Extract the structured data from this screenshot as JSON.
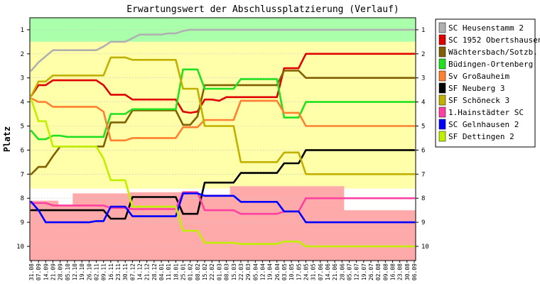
{
  "chart_data": {
    "type": "line",
    "title": "Erwartungswert der Abschlussplatzierung (Verlauf)",
    "xlabel": "",
    "ylabel": "Platz",
    "yaxis": {
      "ticks": [
        1,
        2,
        3,
        4,
        5,
        6,
        7,
        8,
        9,
        10
      ],
      "inverted": true,
      "right_ticks": true
    },
    "x": [
      "31.08",
      "07.09",
      "14.09",
      "21.09",
      "28.09",
      "05.10",
      "12.10",
      "19.10",
      "26.10",
      "02.11",
      "09.11",
      "16.11",
      "23.11",
      "30.11",
      "07.12",
      "14.12",
      "21.12",
      "28.12",
      "04.01",
      "11.01",
      "18.01",
      "25.01",
      "01.02",
      "08.02",
      "15.02",
      "22.02",
      "01.03",
      "08.03",
      "15.03",
      "22.03",
      "29.03",
      "05.04",
      "12.04",
      "19.04",
      "26.04",
      "03.05",
      "10.05",
      "17.05",
      "24.05",
      "31.05",
      "07.06",
      "14.06",
      "21.06",
      "28.06",
      "05.07",
      "12.07",
      "19.07",
      "26.07",
      "02.08",
      "09.08",
      "16.08",
      "23.08",
      "30.08",
      "06.09"
    ],
    "legend": {
      "position": "right"
    },
    "bands": [
      {
        "name": "aufstieg",
        "color": "#aaffaa"
      },
      {
        "name": "mittelfeld",
        "color": "#ffffaa"
      },
      {
        "name": "abstieg",
        "color": "#ffaaaa"
      }
    ],
    "series": [
      {
        "name": "SC Heusenstamm 2",
        "color": "#b0b0b0",
        "values": [
          2.7,
          2.35,
          2.1,
          1.85,
          1.85,
          1.85,
          1.85,
          1.85,
          1.85,
          1.85,
          1.7,
          1.5,
          1.5,
          1.5,
          1.35,
          1.2,
          1.2,
          1.2,
          1.2,
          1.15,
          1.15,
          1.05,
          1.0,
          1.0,
          1.0,
          1.0,
          1.0,
          1.0,
          1.0,
          1.0,
          1.0,
          1.0,
          1.0,
          1.0,
          1.0,
          1.0,
          1.0,
          1.0,
          1.0,
          1.0,
          1.0,
          1.0,
          1.0,
          1.0,
          1.0,
          1.0,
          1.0,
          1.0,
          1.0,
          1.0,
          1.0,
          1.0,
          1.0,
          1.0
        ]
      },
      {
        "name": "SC 1952 Obertshausen",
        "color": "#e00000",
        "values": [
          3.75,
          3.3,
          3.3,
          3.1,
          3.1,
          3.1,
          3.1,
          3.1,
          3.1,
          3.1,
          3.3,
          3.7,
          3.7,
          3.7,
          3.9,
          3.9,
          3.9,
          3.9,
          3.9,
          3.9,
          3.9,
          4.4,
          4.45,
          4.4,
          3.9,
          3.9,
          3.95,
          3.8,
          3.8,
          3.8,
          3.8,
          3.8,
          3.8,
          3.8,
          3.8,
          2.6,
          2.6,
          2.6,
          2.0,
          2.0,
          2.0,
          2.0,
          2.0,
          2.0,
          2.0,
          2.0,
          2.0,
          2.0,
          2.0,
          2.0,
          2.0,
          2.0,
          2.0,
          2.0
        ]
      },
      {
        "name": "Wächtersbach/Sotzb.",
        "color": "#806000",
        "values": [
          7.0,
          6.7,
          6.7,
          6.25,
          5.85,
          5.85,
          5.85,
          5.85,
          5.85,
          5.85,
          5.85,
          4.85,
          4.85,
          4.85,
          4.35,
          4.35,
          4.35,
          4.35,
          4.35,
          4.35,
          4.35,
          4.95,
          4.95,
          4.6,
          3.3,
          3.3,
          3.3,
          3.3,
          3.3,
          3.3,
          3.3,
          3.3,
          3.3,
          3.3,
          3.3,
          2.7,
          2.7,
          2.7,
          3.0,
          3.0,
          3.0,
          3.0,
          3.0,
          3.0,
          3.0,
          3.0,
          3.0,
          3.0,
          3.0,
          3.0,
          3.0,
          3.0,
          3.0,
          3.0
        ]
      },
      {
        "name": "Büdingen-Ortenberg",
        "color": "#20e020",
        "values": [
          5.2,
          5.55,
          5.55,
          5.4,
          5.4,
          5.45,
          5.45,
          5.45,
          5.45,
          5.45,
          5.45,
          4.5,
          4.5,
          4.5,
          4.3,
          4.3,
          4.3,
          4.3,
          4.3,
          4.3,
          4.3,
          2.65,
          2.65,
          2.65,
          3.45,
          3.45,
          3.45,
          3.45,
          3.45,
          3.05,
          3.05,
          3.05,
          3.05,
          3.05,
          3.05,
          4.65,
          4.65,
          4.65,
          4.0,
          4.0,
          4.0,
          4.0,
          4.0,
          4.0,
          4.0,
          4.0,
          4.0,
          4.0,
          4.0,
          4.0,
          4.0,
          4.0,
          4.0,
          4.0
        ]
      },
      {
        "name": "Sv Großauheim",
        "color": "#ff8030",
        "values": [
          3.85,
          4.0,
          4.0,
          4.2,
          4.2,
          4.2,
          4.2,
          4.2,
          4.2,
          4.2,
          4.4,
          5.6,
          5.6,
          5.6,
          5.5,
          5.5,
          5.5,
          5.5,
          5.5,
          5.5,
          5.5,
          5.05,
          5.05,
          5.05,
          4.75,
          4.75,
          4.75,
          4.75,
          4.75,
          3.95,
          3.95,
          3.95,
          3.95,
          3.95,
          3.95,
          4.45,
          4.45,
          4.45,
          5.0,
          5.0,
          5.0,
          5.0,
          5.0,
          5.0,
          5.0,
          5.0,
          5.0,
          5.0,
          5.0,
          5.0,
          5.0,
          5.0,
          5.0,
          5.0
        ]
      },
      {
        "name": "SF Neuberg 3",
        "color": "#000000",
        "values": [
          8.5,
          8.5,
          8.5,
          8.5,
          8.5,
          8.5,
          8.5,
          8.5,
          8.5,
          8.5,
          8.5,
          8.85,
          8.85,
          8.85,
          7.95,
          7.95,
          7.95,
          7.95,
          7.95,
          7.95,
          7.95,
          8.65,
          8.65,
          8.65,
          7.35,
          7.35,
          7.35,
          7.35,
          7.35,
          6.95,
          6.95,
          6.95,
          6.95,
          6.95,
          6.95,
          6.55,
          6.55,
          6.55,
          6.0,
          6.0,
          6.0,
          6.0,
          6.0,
          6.0,
          6.0,
          6.0,
          6.0,
          6.0,
          6.0,
          6.0,
          6.0,
          6.0,
          6.0,
          6.0
        ]
      },
      {
        "name": "SF Schöneck 3",
        "color": "#c0b000",
        "values": [
          3.75,
          3.15,
          3.15,
          2.9,
          2.9,
          2.9,
          2.9,
          2.9,
          2.9,
          2.9,
          2.9,
          2.15,
          2.15,
          2.15,
          2.25,
          2.25,
          2.25,
          2.25,
          2.25,
          2.25,
          2.25,
          3.45,
          3.45,
          3.45,
          5.0,
          5.0,
          5.0,
          5.0,
          5.0,
          6.5,
          6.5,
          6.5,
          6.5,
          6.5,
          6.5,
          6.1,
          6.1,
          6.1,
          7.0,
          7.0,
          7.0,
          7.0,
          7.0,
          7.0,
          7.0,
          7.0,
          7.0,
          7.0,
          7.0,
          7.0,
          7.0,
          7.0,
          7.0,
          7.0
        ]
      },
      {
        "name": "1.Hainstädter SC",
        "color": "#ff40a0",
        "values": [
          8.2,
          8.2,
          8.2,
          8.3,
          8.3,
          8.3,
          8.3,
          8.3,
          8.3,
          8.3,
          8.3,
          8.4,
          8.4,
          8.4,
          8.45,
          8.45,
          8.45,
          8.45,
          8.45,
          8.45,
          8.45,
          7.75,
          7.75,
          7.75,
          8.5,
          8.5,
          8.5,
          8.5,
          8.5,
          8.65,
          8.65,
          8.65,
          8.65,
          8.65,
          8.65,
          8.55,
          8.55,
          8.55,
          8.0,
          8.0,
          8.0,
          8.0,
          8.0,
          8.0,
          8.0,
          8.0,
          8.0,
          8.0,
          8.0,
          8.0,
          8.0,
          8.0,
          8.0,
          8.0
        ]
      },
      {
        "name": "SC Gelnhausen 2",
        "color": "#0000ff",
        "values": [
          8.15,
          8.5,
          9.0,
          9.0,
          9.0,
          9.0,
          9.0,
          9.0,
          9.0,
          8.95,
          8.95,
          8.35,
          8.35,
          8.35,
          8.75,
          8.75,
          8.75,
          8.75,
          8.75,
          8.75,
          8.75,
          7.8,
          7.8,
          7.8,
          7.9,
          7.9,
          7.9,
          7.9,
          7.9,
          8.15,
          8.15,
          8.15,
          8.15,
          8.15,
          8.15,
          8.55,
          8.55,
          8.55,
          9.0,
          9.0,
          9.0,
          9.0,
          9.0,
          9.0,
          9.0,
          9.0,
          9.0,
          9.0,
          9.0,
          9.0,
          9.0,
          9.0,
          9.0,
          9.0
        ]
      },
      {
        "name": "SF Dettingen 2",
        "color": "#c0f000",
        "values": [
          3.9,
          4.8,
          4.8,
          5.85,
          5.85,
          5.85,
          5.85,
          5.85,
          5.85,
          5.85,
          6.35,
          7.25,
          7.25,
          7.25,
          8.35,
          8.35,
          8.35,
          8.35,
          8.35,
          8.35,
          8.35,
          9.35,
          9.35,
          9.35,
          9.85,
          9.85,
          9.85,
          9.85,
          9.85,
          9.9,
          9.9,
          9.9,
          9.9,
          9.9,
          9.9,
          9.8,
          9.8,
          9.8,
          10.0,
          10.0,
          10.0,
          10.0,
          10.0,
          10.0,
          10.0,
          10.0,
          10.0,
          10.0,
          10.0,
          10.0,
          10.0,
          10.0,
          10.0,
          10.0
        ]
      }
    ]
  }
}
